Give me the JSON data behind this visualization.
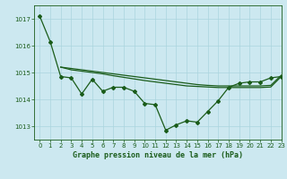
{
  "title": "Graphe pression niveau de la mer (hPa)",
  "background_color": "#cce8f0",
  "grid_color": "#aad4de",
  "line_color": "#1a5c1a",
  "ylim": [
    1012.5,
    1017.5
  ],
  "xlim": [
    -0.5,
    23
  ],
  "yticks": [
    1013,
    1014,
    1015,
    1016,
    1017
  ],
  "xticks": [
    0,
    1,
    2,
    3,
    4,
    5,
    6,
    7,
    8,
    9,
    10,
    11,
    12,
    13,
    14,
    15,
    16,
    17,
    18,
    19,
    20,
    21,
    22,
    23
  ],
  "line1_x": [
    0,
    1,
    2,
    3,
    4,
    5,
    6,
    7,
    8,
    9,
    10,
    11,
    12,
    13,
    14,
    15,
    16,
    17,
    18,
    19,
    20,
    21,
    22,
    23
  ],
  "line1_y": [
    1017.1,
    1016.15,
    1014.85,
    1014.8,
    1014.2,
    1014.75,
    1014.3,
    1014.45,
    1014.45,
    1014.3,
    1013.85,
    1013.8,
    1012.85,
    1013.05,
    1013.2,
    1013.15,
    1013.55,
    1013.95,
    1014.45,
    1014.6,
    1014.65,
    1014.65,
    1014.8,
    1014.85
  ],
  "line2_x": [
    2,
    3,
    4,
    5,
    6,
    7,
    8,
    9,
    10,
    11,
    12,
    13,
    14,
    15,
    16,
    17,
    18,
    19,
    20,
    21,
    22,
    23
  ],
  "line2_y": [
    1015.2,
    1015.15,
    1015.1,
    1015.05,
    1015.0,
    1014.95,
    1014.9,
    1014.85,
    1014.8,
    1014.75,
    1014.7,
    1014.65,
    1014.6,
    1014.55,
    1014.52,
    1014.5,
    1014.5,
    1014.5,
    1014.5,
    1014.5,
    1014.52,
    1014.9
  ],
  "line3_x": [
    2,
    3,
    4,
    5,
    6,
    7,
    8,
    9,
    10,
    11,
    12,
    13,
    14,
    15,
    16,
    17,
    18,
    19,
    20,
    21,
    22,
    23
  ],
  "line3_y": [
    1015.2,
    1015.1,
    1015.05,
    1015.0,
    1014.95,
    1014.88,
    1014.82,
    1014.76,
    1014.7,
    1014.65,
    1014.6,
    1014.55,
    1014.5,
    1014.48,
    1014.46,
    1014.44,
    1014.44,
    1014.44,
    1014.44,
    1014.44,
    1014.46,
    1014.85
  ]
}
